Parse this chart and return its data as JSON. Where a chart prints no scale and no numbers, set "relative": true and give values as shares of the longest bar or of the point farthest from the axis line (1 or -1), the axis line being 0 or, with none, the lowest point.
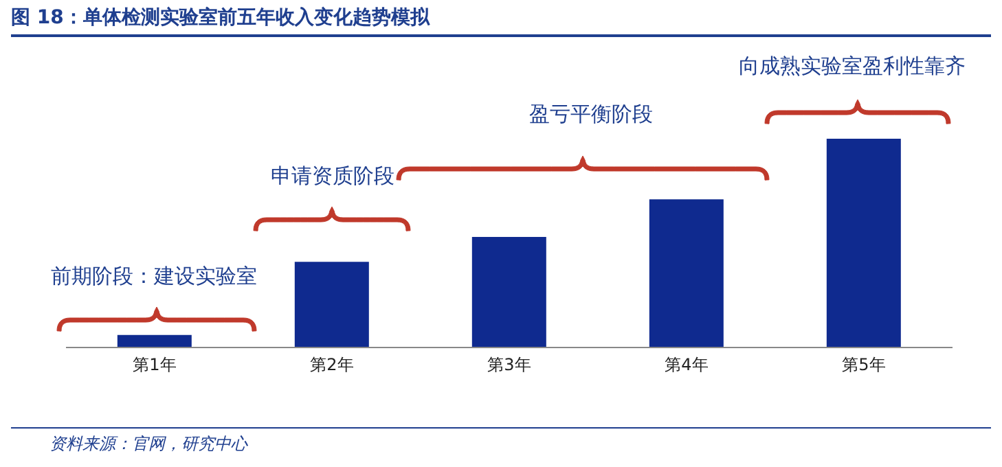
{
  "chart_data": {
    "type": "bar",
    "title": "图 18：单体检测实验室前五年收入变化趋势模拟",
    "categories": [
      "第1年",
      "第2年",
      "第3年",
      "第4年",
      "第5年"
    ],
    "values": [
      0.06,
      0.41,
      0.53,
      0.71,
      1
    ],
    "color": "#0f2a8f",
    "relative": true,
    "grid": false,
    "legend": false,
    "annotations": [
      "前期阶段：建设实验室",
      "申请资质阶段",
      "盈亏平衡阶段",
      "向成熟实验室盈利性靠齐",
      "资料来源：官网，研究中心"
    ]
  }
}
